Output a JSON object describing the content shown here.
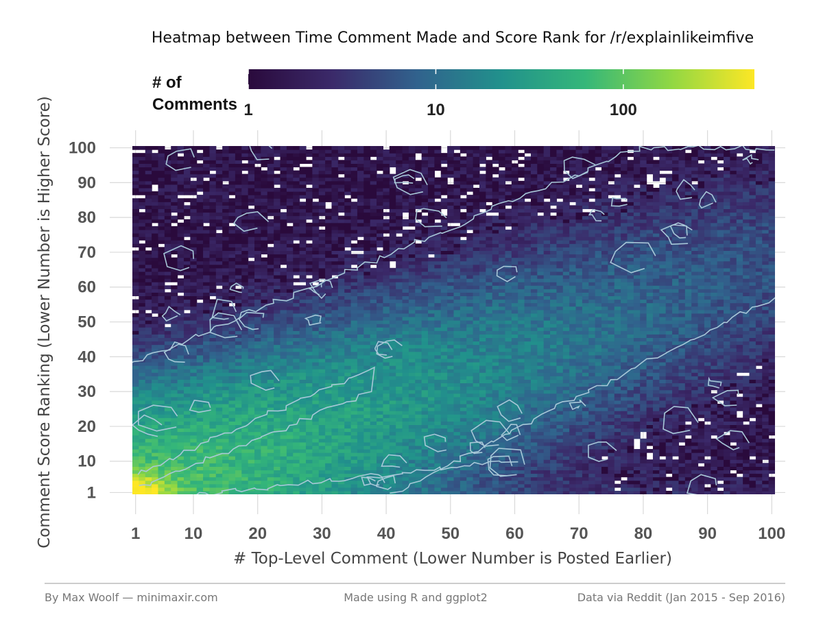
{
  "chart_data": {
    "type": "heatmap",
    "title": "Heatmap between Time Comment Made and Score Rank for /r/explainlikeimfive",
    "xlabel": "# Top-Level Comment (Lower Number is Posted Earlier)",
    "ylabel": "Comment Score Ranking (Lower Number is Higher Score)",
    "x_ticks": [
      "1",
      "10",
      "20",
      "30",
      "40",
      "50",
      "60",
      "70",
      "80",
      "90",
      "100"
    ],
    "y_ticks": [
      "1",
      "10",
      "20",
      "30",
      "40",
      "50",
      "60",
      "70",
      "80",
      "90",
      "100"
    ],
    "xlim": [
      1,
      100
    ],
    "ylim": [
      1,
      100
    ],
    "grid": true,
    "legend": {
      "title": "# of Comments",
      "position": "top",
      "scale": "log",
      "ticks": [
        "1",
        "10",
        "100"
      ],
      "range": [
        1,
        500
      ],
      "colors": [
        "#2a0a3c",
        "#3b2a6a",
        "#31628d",
        "#21918c",
        "#35b779",
        "#8fd744",
        "#fde725"
      ]
    },
    "summary_values": {
      "peak_cell": {
        "x": 1,
        "y": 1,
        "count": 500
      },
      "diagonal_band_count_near_start": 100,
      "diagonal_band_count_midway": 30,
      "corner_counts": {
        "top_left": 2,
        "bottom_right": 2
      }
    },
    "contour_color": "#a8c8d8"
  },
  "footer": {
    "left": "By Max Woolf — minimaxir.com",
    "center": "Made using R and ggplot2",
    "right": "Data via Reddit (Jan 2015 - Sep 2016)"
  }
}
